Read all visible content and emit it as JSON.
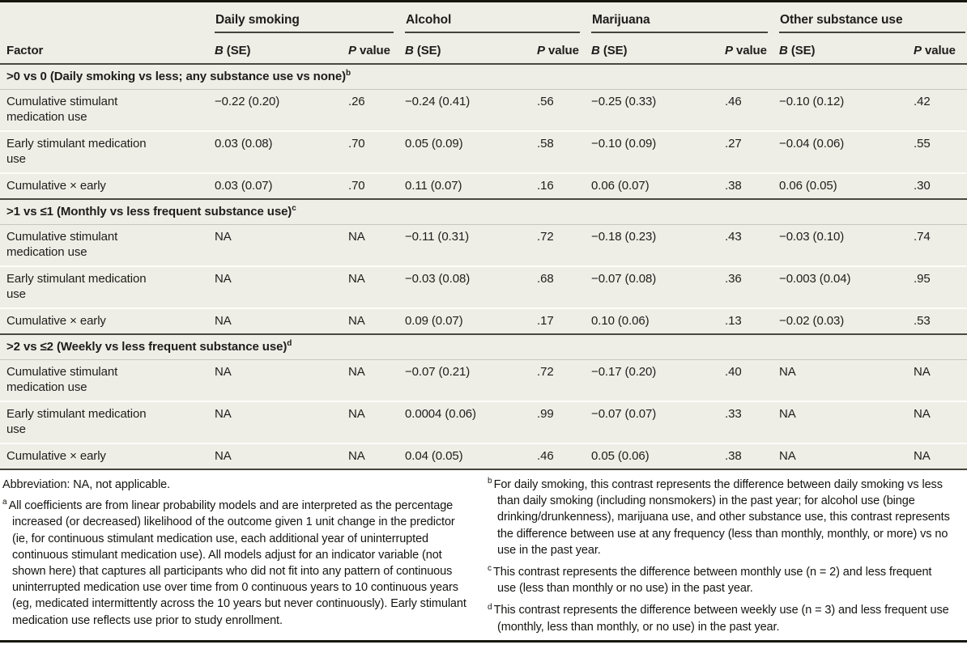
{
  "colors": {
    "table_background": "#efeee6",
    "rule_dark": "#17160f",
    "rule_medium": "#45443c",
    "row_separator": "#fcfcf9",
    "section_underline": "#c8c7bf",
    "text": "#1e1d1b"
  },
  "table": {
    "factor_header": "Factor",
    "header_b": "B",
    "header_se": " (SE)",
    "header_p": "P",
    "header_value": " value",
    "col_groups": [
      {
        "label": "Daily smoking"
      },
      {
        "label": "Alcohol"
      },
      {
        "label": "Marijuana"
      },
      {
        "label": "Other substance use"
      }
    ],
    "sections": [
      {
        "title": ">0 vs 0 (Daily smoking vs less; any substance use vs none)",
        "sup": "b",
        "rows": [
          {
            "factor": "Cumulative stimulant medication use",
            "cells": [
              "−0.22 (0.20)",
              ".26",
              "−0.24 (0.41)",
              ".56",
              "−0.25 (0.33)",
              ".46",
              "−0.10 (0.12)",
              ".42"
            ]
          },
          {
            "factor": "Early stimulant medication use",
            "cells": [
              "0.03 (0.08)",
              ".70",
              "0.05 (0.09)",
              ".58",
              "−0.10 (0.09)",
              ".27",
              "−0.04 (0.06)",
              ".55"
            ]
          },
          {
            "factor": "Cumulative × early",
            "cells": [
              "0.03 (0.07)",
              ".70",
              "0.11 (0.07)",
              ".16",
              "0.06 (0.07)",
              ".38",
              "0.06 (0.05)",
              ".30"
            ]
          }
        ]
      },
      {
        "title": ">1 vs ≤1 (Monthly vs less frequent substance use)",
        "sup": "c",
        "rows": [
          {
            "factor": "Cumulative stimulant medication use",
            "cells": [
              "NA",
              "NA",
              "−0.11 (0.31)",
              ".72",
              "−0.18 (0.23)",
              ".43",
              "−0.03 (0.10)",
              ".74"
            ]
          },
          {
            "factor": "Early stimulant medication use",
            "cells": [
              "NA",
              "NA",
              "−0.03 (0.08)",
              ".68",
              "−0.07 (0.08)",
              ".36",
              "−0.003 (0.04)",
              ".95"
            ]
          },
          {
            "factor": "Cumulative × early",
            "cells": [
              "NA",
              "NA",
              "0.09 (0.07)",
              ".17",
              "0.10 (0.06)",
              ".13",
              "−0.02 (0.03)",
              ".53"
            ]
          }
        ]
      },
      {
        "title": ">2 vs ≤2 (Weekly vs less frequent substance use)",
        "sup": "d",
        "rows": [
          {
            "factor": "Cumulative stimulant medication use",
            "cells": [
              "NA",
              "NA",
              "−0.07 (0.21)",
              ".72",
              "−0.17 (0.20)",
              ".40",
              "NA",
              "NA"
            ]
          },
          {
            "factor": "Early stimulant medication use",
            "cells": [
              "NA",
              "NA",
              "0.0004 (0.06)",
              ".99",
              "−0.07 (0.07)",
              ".33",
              "NA",
              "NA"
            ]
          },
          {
            "factor": "Cumulative × early",
            "cells": [
              "NA",
              "NA",
              "0.04 (0.05)",
              ".46",
              "0.05 (0.06)",
              ".38",
              "NA",
              "NA"
            ]
          }
        ]
      }
    ]
  },
  "footnotes": {
    "abbreviation": "Abbreviation: NA, not applicable.",
    "items_left": [
      {
        "sup": "a",
        "text": "All coefficients are from linear probability models and are interpreted as the percentage increased (or decreased) likelihood of the outcome given 1 unit change in the predictor (ie, for continuous stimulant medication use, each additional year of uninterrupted continuous stimulant medication use). All models adjust for an indicator variable (not shown here) that captures all participants who did not fit into any pattern of continuous uninterrupted medication use over time from 0 continuous years to 10 continuous years (eg, medicated intermittently across the 10 years but never continuously). Early stimulant medication use reflects use prior to study enrollment."
      }
    ],
    "items_right": [
      {
        "sup": "b",
        "text": "For daily smoking, this contrast represents the difference between daily smoking vs less than daily smoking (including nonsmokers) in the past year; for alcohol use (binge drinking/drunkenness), marijuana use, and other substance use, this contrast represents the difference between use at any frequency (less than monthly, monthly, or more) vs no use in the past year."
      },
      {
        "sup": "c",
        "text": "This contrast represents the difference between monthly use (n = 2) and less frequent use (less than monthly or no use) in the past year."
      },
      {
        "sup": "d",
        "text": "This contrast represents the difference between weekly use (n = 3) and less frequent use (monthly, less than monthly, or no use) in the past year."
      }
    ]
  }
}
